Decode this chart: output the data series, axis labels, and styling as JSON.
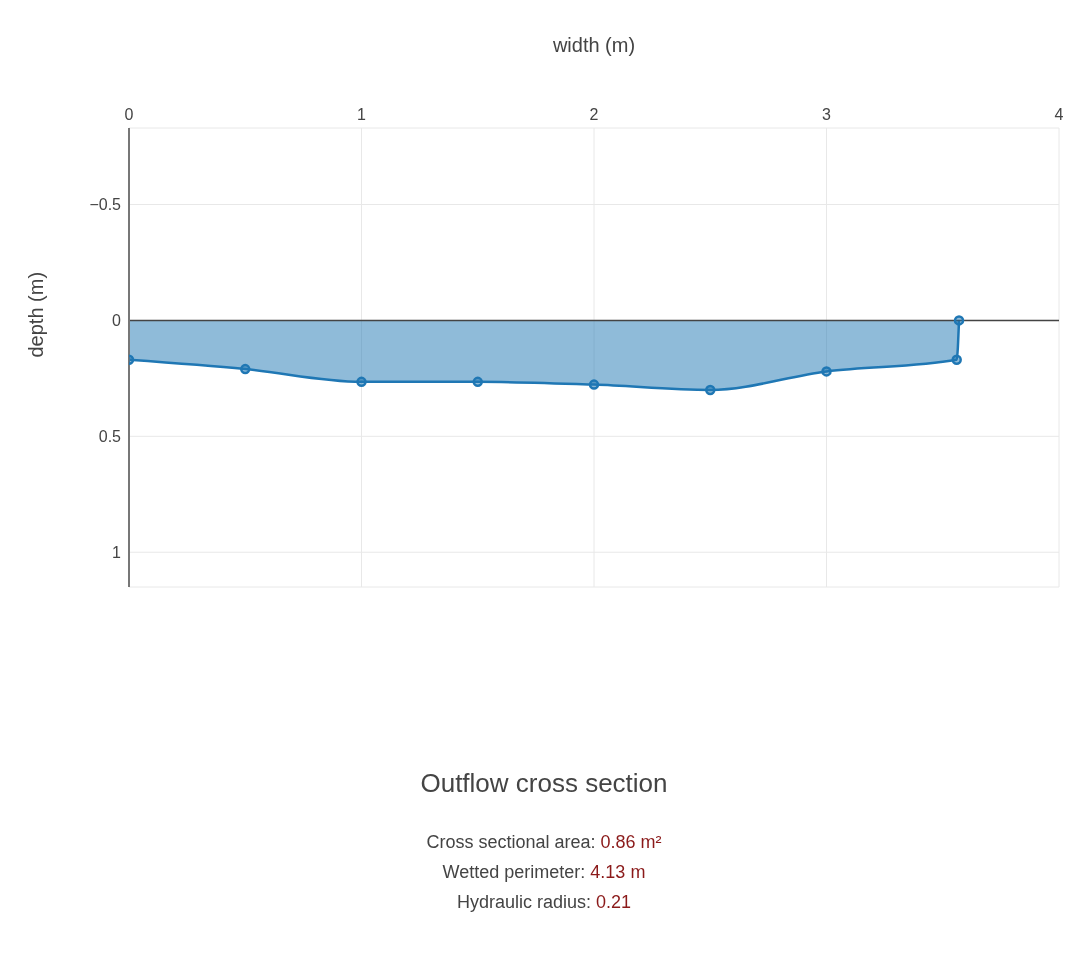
{
  "chart_data": {
    "type": "area",
    "title": "Outflow cross section",
    "xlabel": "width (m)",
    "ylabel": "depth (m)",
    "x": [
      0,
      0.5,
      1,
      1.5,
      2,
      2.5,
      3,
      3.56,
      3.57
    ],
    "series": [
      {
        "color": "#1f77b4",
        "values": [
          0.17,
          0.21,
          0.265,
          0.265,
          0.277,
          0.3,
          0.22,
          0.17,
          0
        ]
      }
    ],
    "xlim": [
      0,
      4
    ],
    "xticks": [
      0,
      1,
      2,
      3,
      4
    ],
    "ylim": [
      1.15,
      -0.83
    ],
    "yticks": [
      -0.5,
      0,
      0.5,
      1
    ],
    "grid": true,
    "marker": "circle",
    "ref_lines": [
      {
        "axis": "y",
        "value": 0,
        "color": "#444444"
      }
    ],
    "annotations": [
      "Cross sectional area: 0.86 m²",
      "Wetted perimeter: 4.13 m",
      "Hydraulic radius: 0.21"
    ]
  }
}
